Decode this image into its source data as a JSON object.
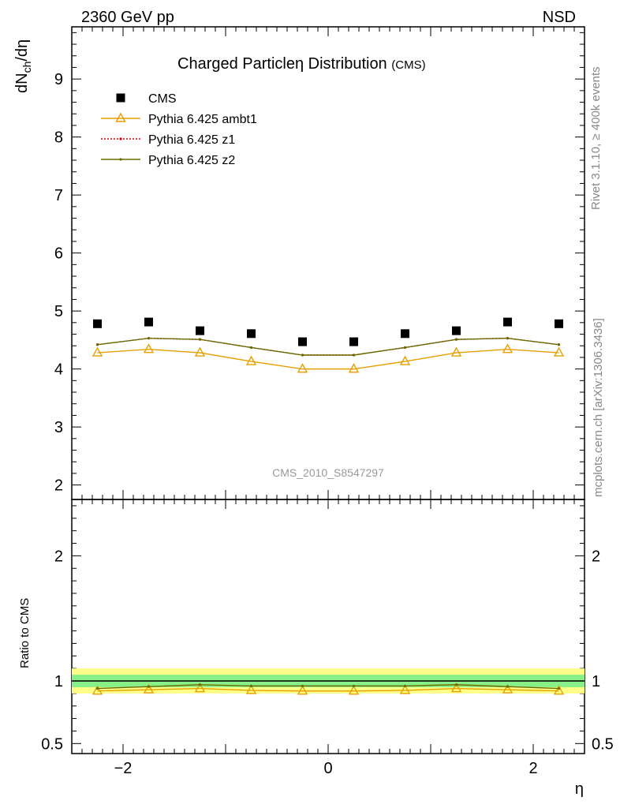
{
  "header": {
    "left": "2360 GeV pp",
    "right": "NSD"
  },
  "side": {
    "rivet": "Rivet 3.1.10, ≥ 400k events",
    "mcplots": "mcplots.cern.ch [arXiv:1306.3436]"
  },
  "watermark": "CMS_2010_S8547297",
  "chart_data": [
    {
      "type": "line",
      "title": "Charged Particleη Distribution",
      "title_suffix": "(CMS)",
      "ylabel_main": "dN",
      "ylabel_sub": "ch",
      "ylabel_tail": "/dη",
      "xlabel": "η",
      "xlim": [
        -2.5,
        2.5
      ],
      "ylim": [
        1.75,
        9.9
      ],
      "yticks": [
        "2",
        "3",
        "4",
        "5",
        "6",
        "7",
        "8",
        "9"
      ],
      "xticks": [
        "−2",
        "0",
        "2"
      ],
      "x": [
        -2.25,
        -1.75,
        -1.25,
        -0.75,
        -0.25,
        0.25,
        0.75,
        1.25,
        1.75,
        2.25
      ],
      "legend_position": "top-left",
      "series": [
        {
          "name": "CMS",
          "color": "#000000",
          "marker": "square",
          "values": [
            4.78,
            4.81,
            4.66,
            4.61,
            4.47,
            4.47,
            4.61,
            4.66,
            4.81,
            4.78
          ]
        },
        {
          "name": "Pythia 6.425 ambt1",
          "color": "#e69f00",
          "marker": "triangle",
          "values": [
            4.28,
            4.34,
            4.28,
            4.13,
            4.0,
            4.0,
            4.13,
            4.28,
            4.34,
            4.28
          ]
        },
        {
          "name": "Pythia 6.425 z1",
          "color": "#cc0000",
          "marker": "dot",
          "dashed": true,
          "values": [
            4.42,
            4.53,
            4.51,
            4.37,
            4.24,
            4.24,
            4.37,
            4.51,
            4.53,
            4.42
          ]
        },
        {
          "name": "Pythia 6.425 z2",
          "color": "#6b6b00",
          "marker": "dot",
          "values": [
            4.42,
            4.53,
            4.51,
            4.37,
            4.24,
            4.24,
            4.37,
            4.51,
            4.53,
            4.42
          ]
        }
      ]
    },
    {
      "type": "line",
      "ylabel": "Ratio to CMS",
      "xlim": [
        -2.5,
        2.5
      ],
      "ylim": [
        0.42,
        2.45
      ],
      "yticks": [
        "0.5",
        "1",
        "2"
      ],
      "x": [
        -2.25,
        -1.75,
        -1.25,
        -0.75,
        -0.25,
        0.25,
        0.75,
        1.25,
        1.75,
        2.25
      ],
      "band_inner": 0.05,
      "band_outer": 0.1,
      "series": [
        {
          "name": "Pythia 6.425 ambt1",
          "color": "#e69f00",
          "marker": "triangle",
          "values": [
            0.92,
            0.93,
            0.94,
            0.925,
            0.92,
            0.92,
            0.925,
            0.94,
            0.93,
            0.92
          ]
        },
        {
          "name": "Pythia 6.425 z2",
          "color": "#6b6b00",
          "marker": "dot",
          "values": [
            0.94,
            0.955,
            0.97,
            0.96,
            0.96,
            0.96,
            0.96,
            0.97,
            0.955,
            0.94
          ]
        }
      ]
    }
  ]
}
